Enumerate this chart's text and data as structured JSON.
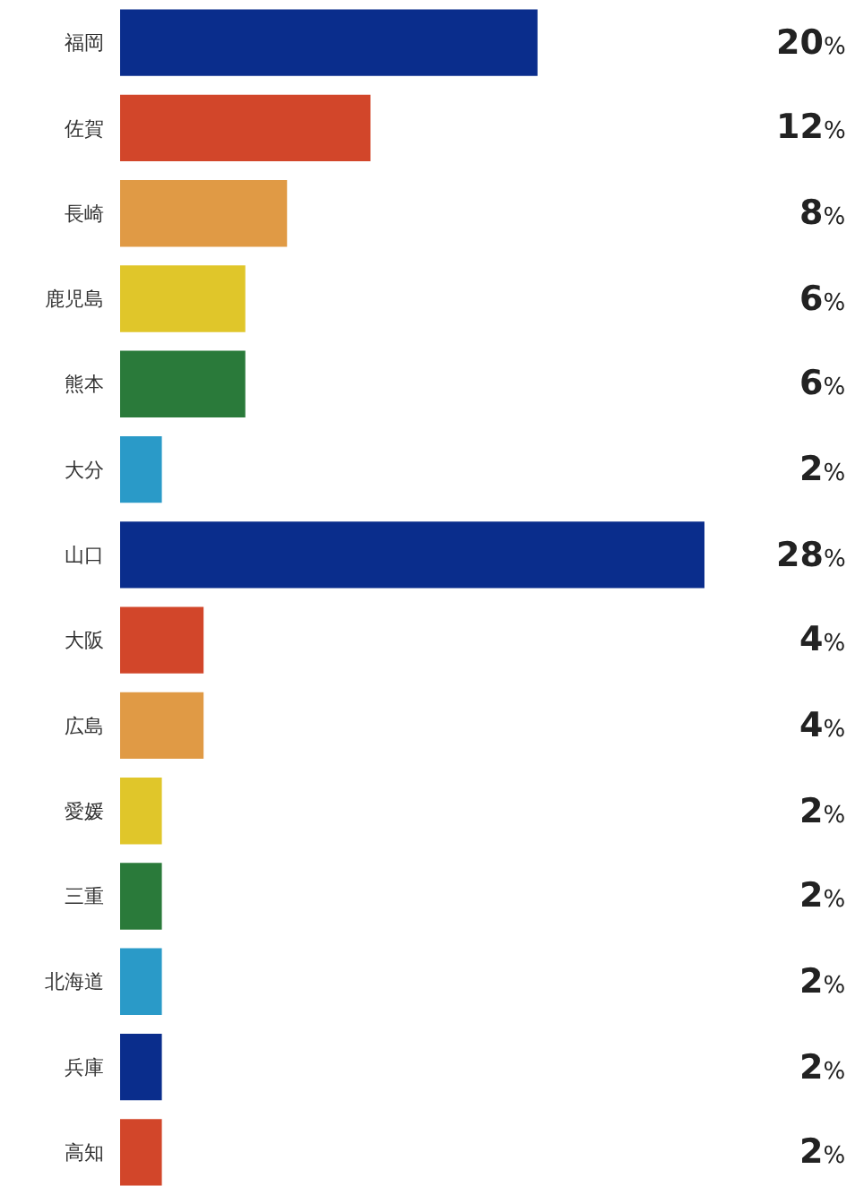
{
  "chart_data": {
    "type": "bar",
    "orientation": "horizontal",
    "categories": [
      "福岡",
      "佐賀",
      "長崎",
      "鹿児島",
      "熊本",
      "大分",
      "山口",
      "大阪",
      "広島",
      "愛媛",
      "三重",
      "北海道",
      "兵庫",
      "高知"
    ],
    "values": [
      20,
      12,
      8,
      6,
      6,
      2,
      28,
      4,
      4,
      2,
      2,
      2,
      2,
      2
    ],
    "value_labels": [
      "20%",
      "12%",
      "8%",
      "6%",
      "6%",
      "2%",
      "28%",
      "4%",
      "4%",
      "2%",
      "2%",
      "2%",
      "2%",
      "2%"
    ],
    "colors": [
      "#0a2d8c",
      "#d2462a",
      "#e09a45",
      "#e0c62a",
      "#2a7a3a",
      "#2a9ac8",
      "#0a2d8c",
      "#d2462a",
      "#e09a45",
      "#e0c62a",
      "#2a7a3a",
      "#2a9ac8",
      "#0a2d8c",
      "#d2462a"
    ],
    "legend": false
  }
}
